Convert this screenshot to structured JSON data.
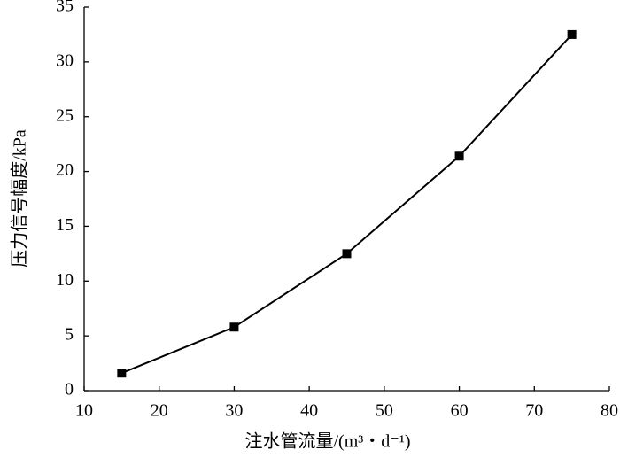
{
  "chart_data": {
    "type": "line",
    "x_label": "注水管流量/(m³・d⁻¹)",
    "y_label": "压力信号幅度/kPa",
    "x": [
      15,
      30,
      45,
      60,
      75
    ],
    "series": [
      {
        "color": "#000000",
        "values": [
          1.6,
          5.8,
          12.5,
          21.4,
          32.5
        ]
      }
    ],
    "marker": "square",
    "xlim": [
      10,
      80
    ],
    "xticks": [
      10,
      20,
      30,
      40,
      50,
      60,
      70,
      80
    ],
    "ylim": [
      0,
      35
    ],
    "yticks": [
      0,
      5,
      10,
      15,
      20,
      25,
      30,
      35
    ],
    "grid": false
  }
}
